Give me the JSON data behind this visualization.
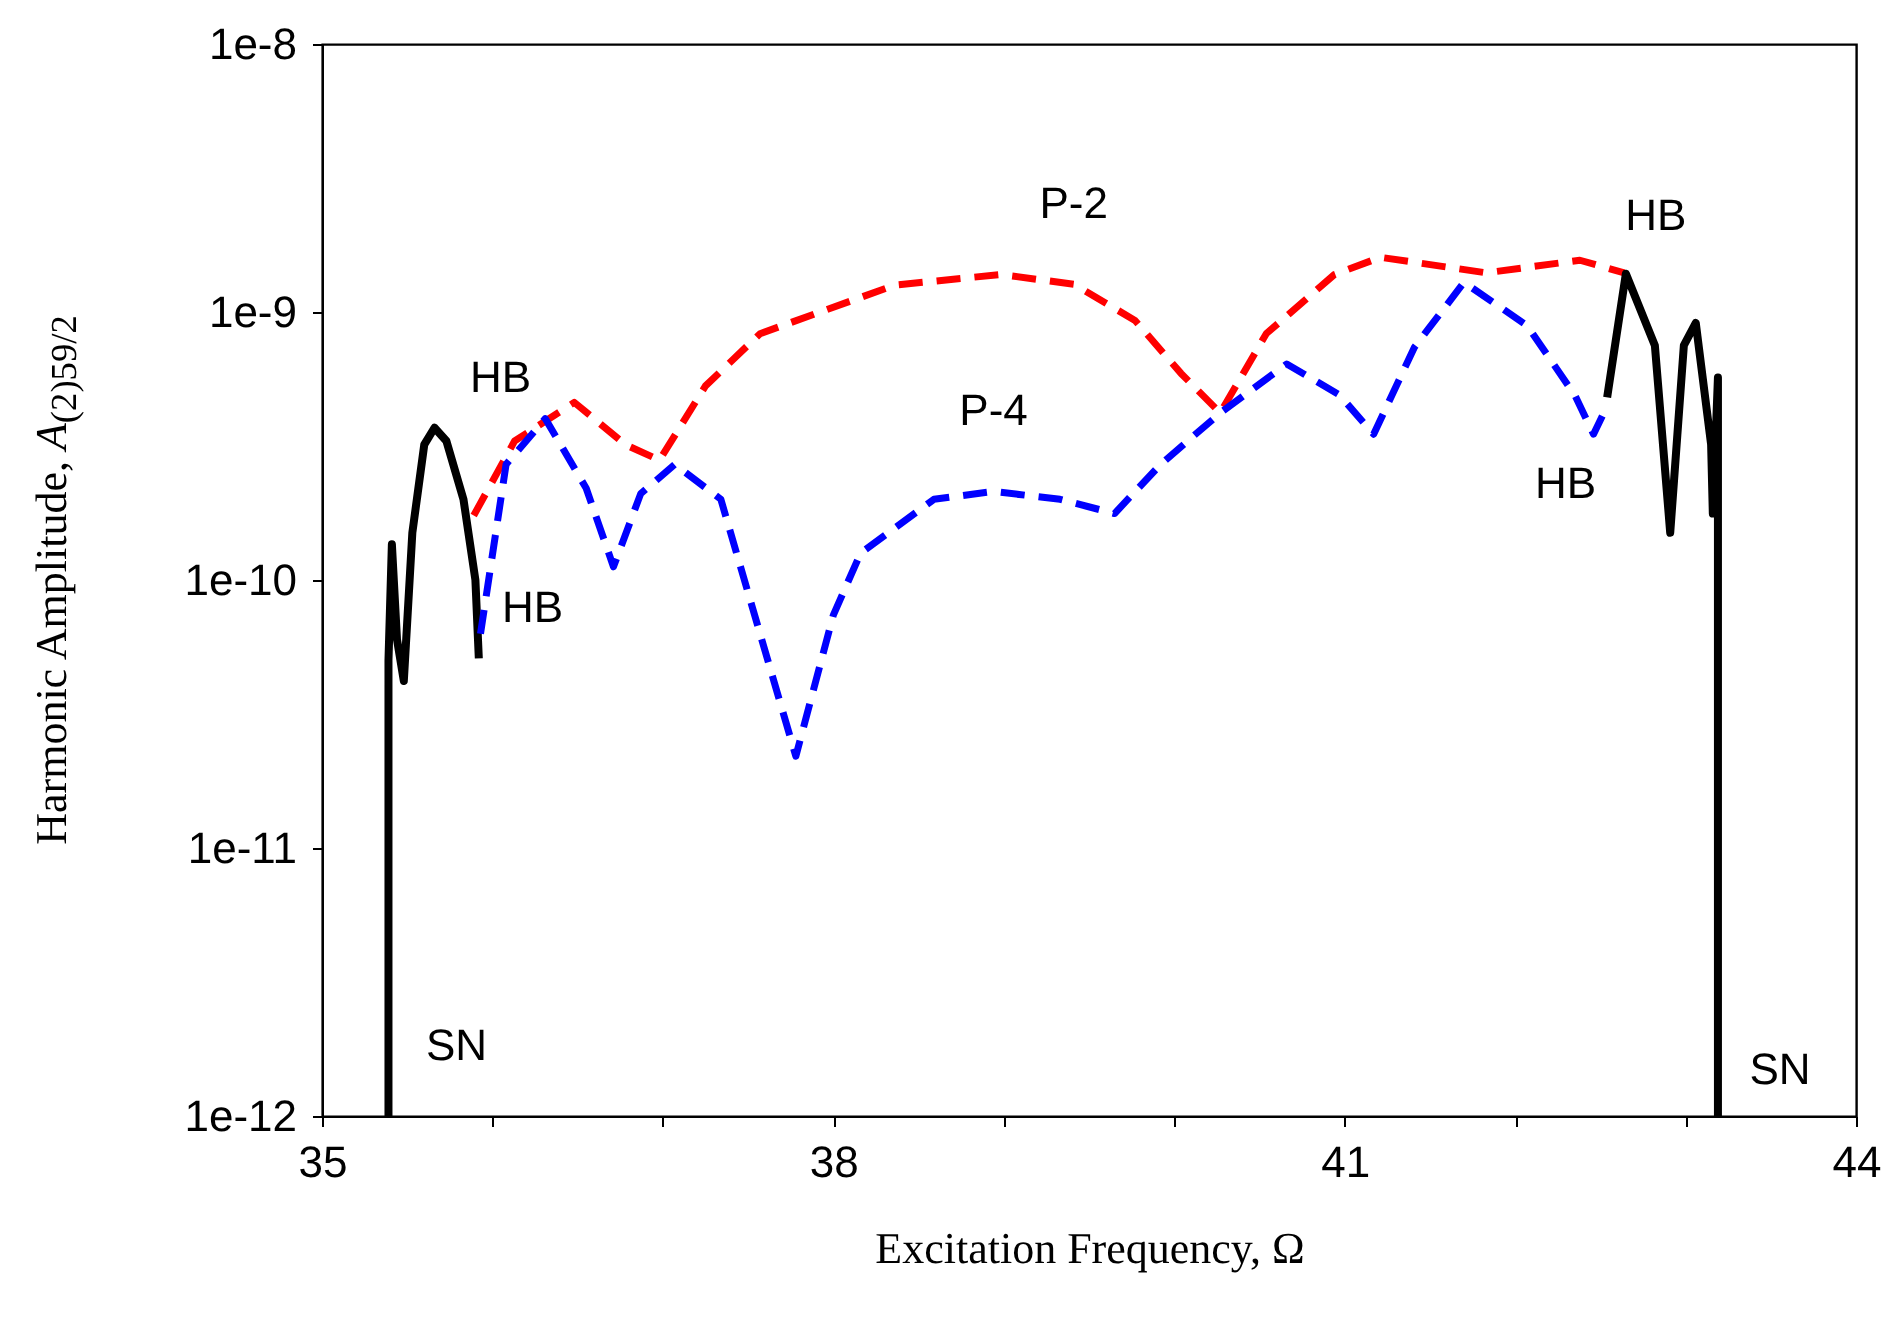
{
  "chart_data": {
    "type": "line",
    "xlabel": "Excitation Frequency, Ω",
    "ylabel": "Harmonic Amplitude, A$_{(2)59/2}$",
    "log": true,
    "grid": false,
    "legend": false,
    "marker": "none",
    "xlim": [
      35,
      44
    ],
    "xticks": [
      35,
      {
        "value": 36,
        "label": null
      },
      {
        "value": 37,
        "label": null
      },
      38,
      {
        "value": 39,
        "label": null
      },
      {
        "value": 40,
        "label": null
      },
      41,
      {
        "value": 42,
        "label": null
      },
      {
        "value": 43,
        "label": null
      },
      44
    ],
    "ylim": [
      1e-12,
      1e-08
    ],
    "yticks": [
      {
        "value": 1e-12,
        "label": "1e-12"
      },
      {
        "value": 1e-11,
        "label": "1e-11"
      },
      {
        "value": 1e-10,
        "label": "1e-10"
      },
      {
        "value": 1e-09,
        "label": "1e-9"
      },
      {
        "value": 1e-08,
        "label": "1e-8"
      }
    ],
    "series": [
      {
        "color": "#000000",
        "line_style": "solid",
        "x": [
          35.39,
          35.39,
          35.41,
          35.44,
          35.48,
          35.53,
          35.6,
          35.66,
          35.73,
          35.83,
          35.9,
          35.92
        ],
        "values": [
          1e-12,
          5e-11,
          1.36e-10,
          6e-11,
          4.2e-11,
          1.5e-10,
          3.2e-10,
          3.7e-10,
          3.3e-10,
          2e-10,
          1e-10,
          5.1e-11
        ]
      },
      {
        "name": "P-2",
        "color": "#ff0000",
        "line_style": "dashed",
        "x": [
          35.89,
          36.13,
          36.48,
          36.78,
          36.98,
          37.25,
          37.57,
          38.36,
          38.98,
          39.41,
          39.77,
          40.04,
          40.27,
          40.54,
          40.94,
          41.21,
          41.83,
          42.38,
          42.64
        ],
        "values": [
          1.74e-10,
          3.3e-10,
          4.6e-10,
          3.2e-10,
          2.8e-10,
          5.3e-10,
          8.3e-10,
          1.26e-09,
          1.38e-09,
          1.27e-09,
          9.3e-10,
          5.9e-10,
          4.2e-10,
          8.3e-10,
          1.38e-09,
          1.6e-09,
          1.4e-09,
          1.56e-09,
          1.4e-09
        ]
      },
      {
        "name": "P-4",
        "color": "#0000ff",
        "line_style": "dashed",
        "x": [
          35.93,
          36.08,
          36.31,
          36.55,
          36.71,
          36.87,
          37.07,
          37.34,
          37.57,
          37.78,
          38.0,
          38.16,
          38.59,
          38.94,
          39.33,
          39.65,
          39.92,
          40.27,
          40.66,
          40.97,
          41.17,
          41.41,
          41.7,
          42.07,
          42.35,
          42.46,
          42.52
        ],
        "values": [
          6.3e-11,
          2.7e-10,
          4e-10,
          2.2e-10,
          1.12e-10,
          2.1e-10,
          2.7e-10,
          2e-10,
          6.3e-11,
          2.2e-11,
          7.4e-11,
          1.26e-10,
          2e-10,
          2.14e-10,
          2e-10,
          1.77e-10,
          2.7e-10,
          4.2e-10,
          6.4e-10,
          4.9e-10,
          3.5e-10,
          7.4e-10,
          1.29e-09,
          8.9e-10,
          4.9e-10,
          3.5e-10,
          4.2e-10
        ]
      },
      {
        "color": "#000000",
        "line_style": "solid",
        "x": [
          42.54,
          42.65,
          42.82,
          42.91,
          42.99,
          43.06,
          43.15,
          43.16,
          43.19,
          43.19
        ],
        "values": [
          4.8e-10,
          1.39e-09,
          7.5e-10,
          1.5e-10,
          7.5e-10,
          9.1e-10,
          3.2e-10,
          1.77e-10,
          5.7e-10,
          1e-12
        ]
      }
    ],
    "annotations": [
      {
        "text": "HB",
        "x": 35.66,
        "y": 3.7e-10
      },
      {
        "text": "HB",
        "x": 35.93,
        "y": 6.3e-11
      },
      {
        "text": "HB",
        "x": 42.46,
        "y": 3.5e-10
      },
      {
        "text": "HB",
        "x": 42.65,
        "y": 1.39e-09
      },
      {
        "text": "SN",
        "x": 35.39,
        "y": 1e-12
      },
      {
        "text": "SN",
        "x": 43.19,
        "y": 1e-12
      }
    ]
  }
}
